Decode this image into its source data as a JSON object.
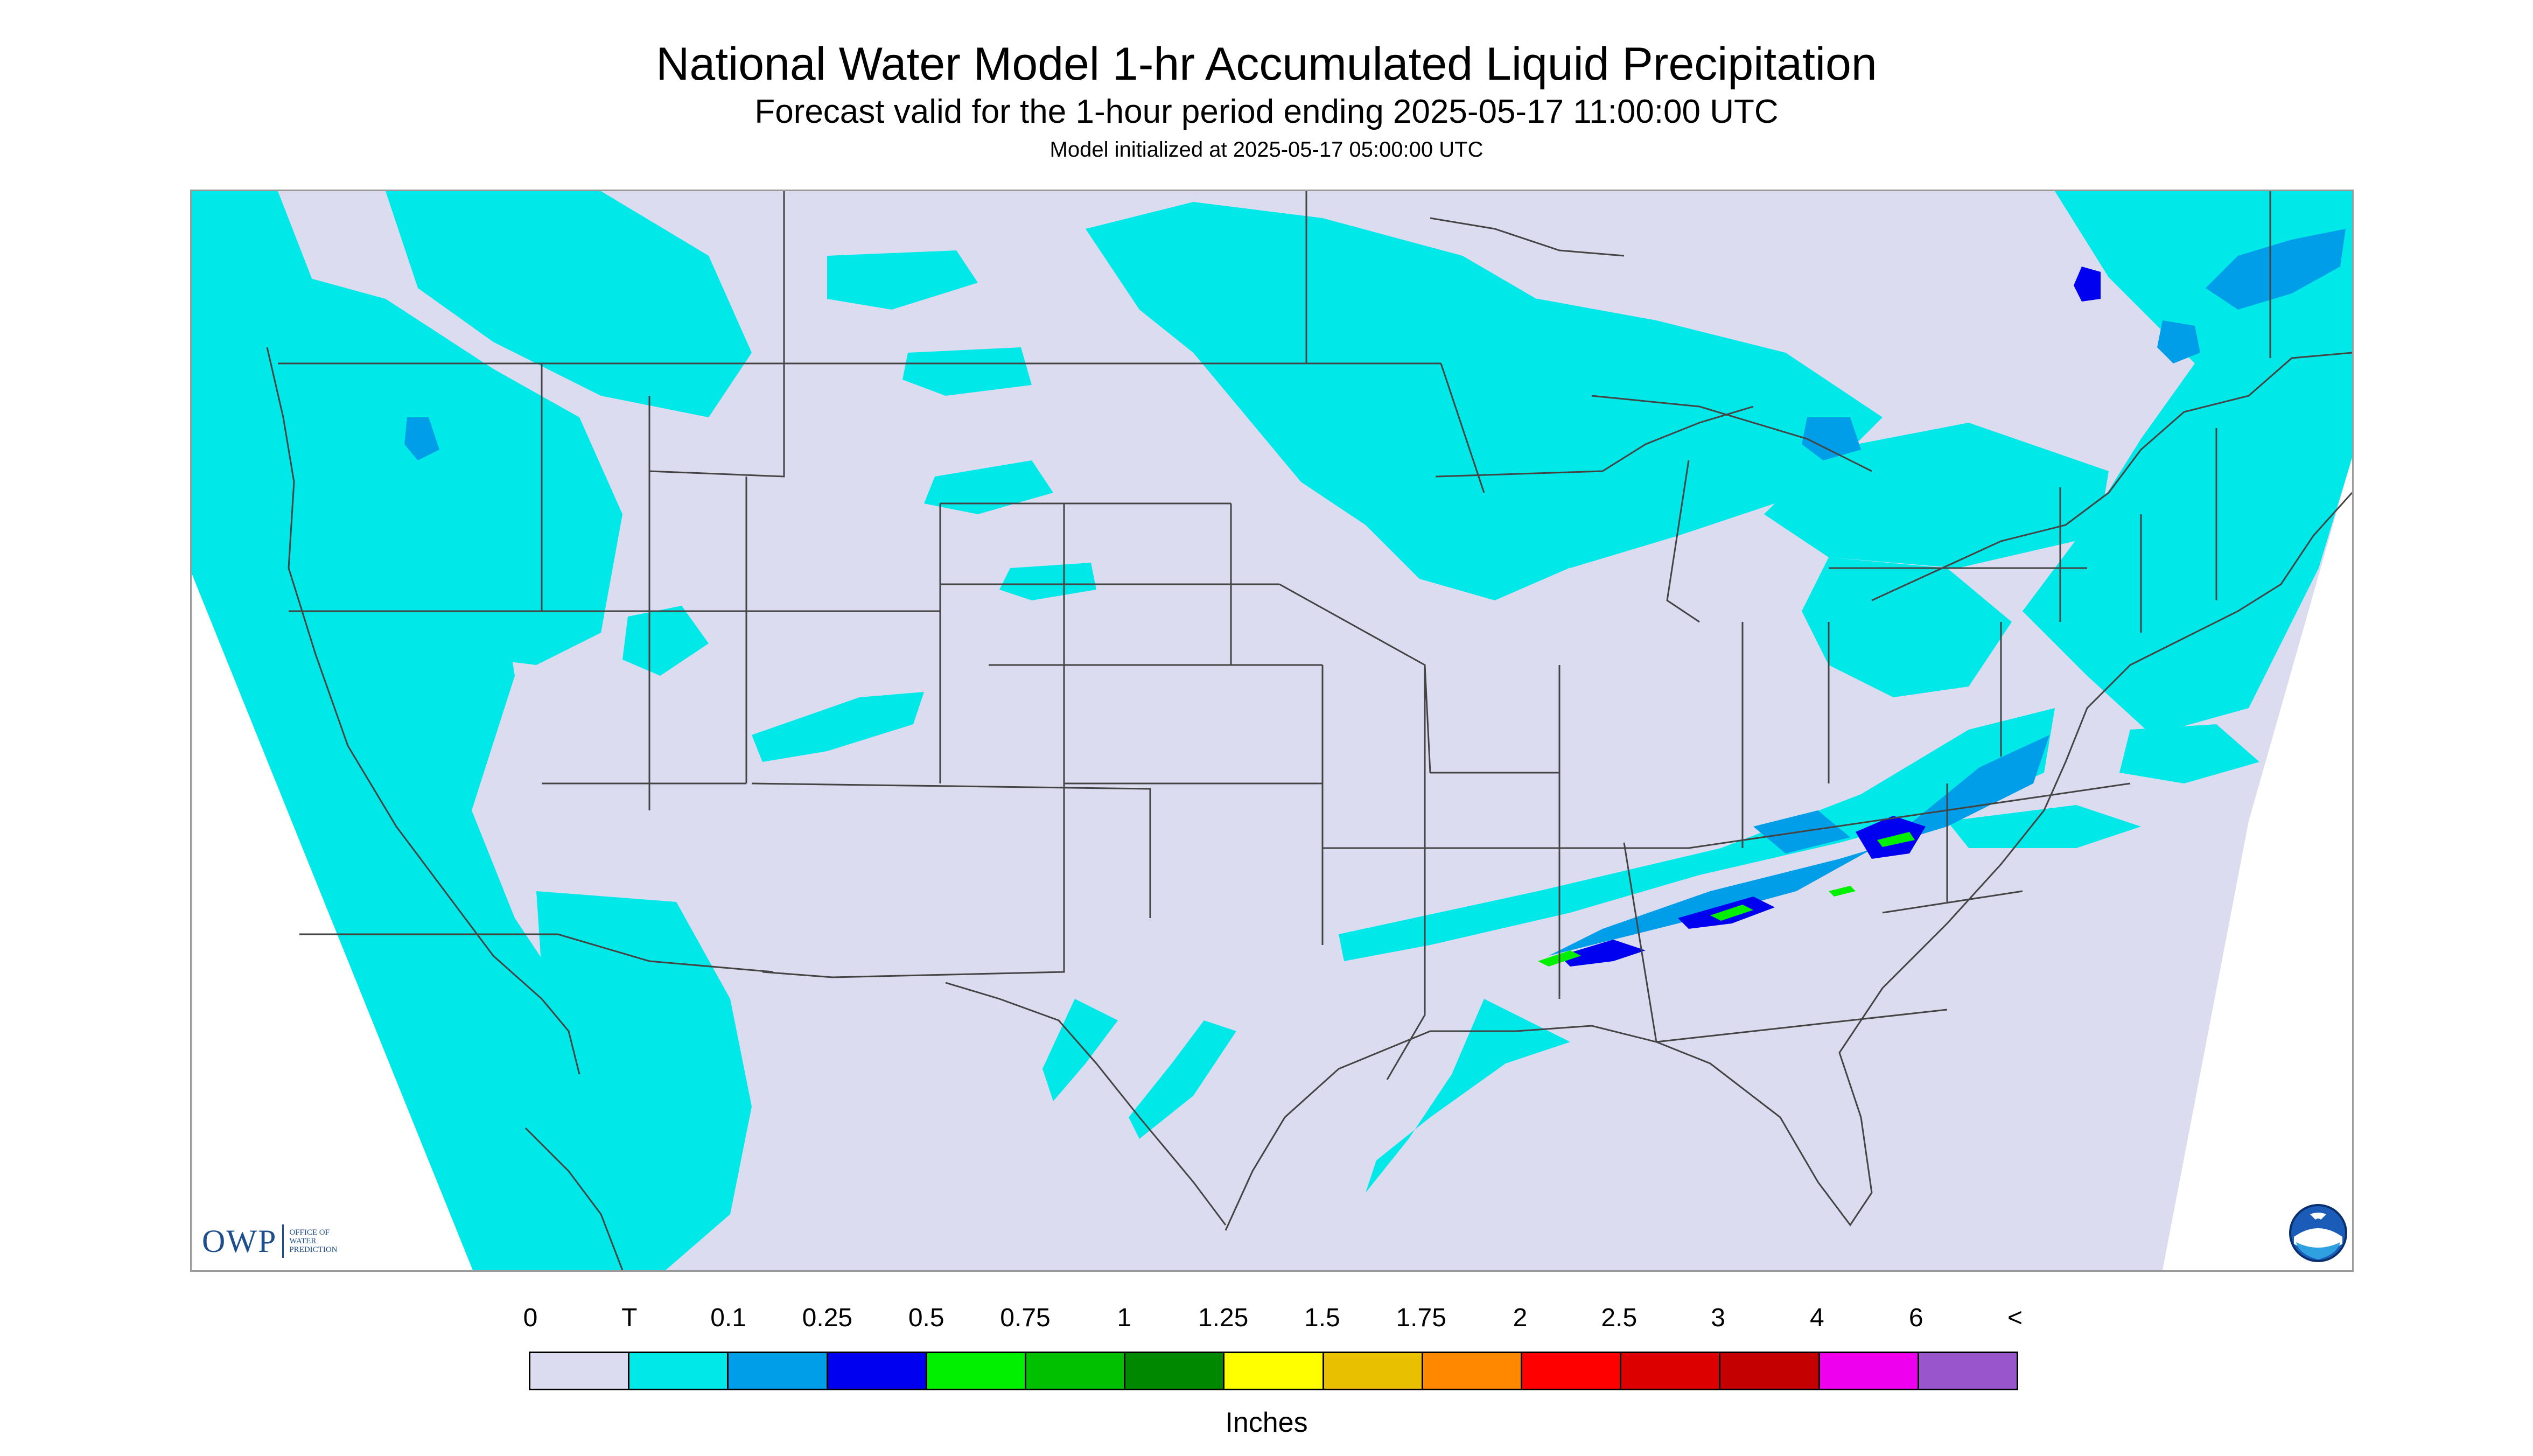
{
  "header": {
    "title": "National Water Model 1-hr Accumulated Liquid Precipitation",
    "subtitle": "Forecast valid for the 1-hour period ending 2025-05-17 11:00:00 UTC",
    "init_line": "Model initialized at 2025-05-17 05:00:00 UTC"
  },
  "logos": {
    "owp": "OWP",
    "owp_sub": [
      "OFFICE OF",
      "WATER",
      "PREDICTION"
    ],
    "noaa": "NOAA"
  },
  "colorbar": {
    "ticks": [
      "0",
      "T",
      "0.1",
      "0.25",
      "0.5",
      "0.75",
      "1",
      "1.25",
      "1.5",
      "1.75",
      "2",
      "2.5",
      "3",
      "4",
      "6",
      "<"
    ],
    "colors": [
      "#dcdcf0",
      "#00e8e8",
      "#009ee8",
      "#0000f0",
      "#00f000",
      "#00c000",
      "#008800",
      "#ffff00",
      "#e8c000",
      "#ff8800",
      "#ff0000",
      "#dd0000",
      "#c40000",
      "#ee00ee",
      "#9955cc"
    ],
    "units": "Inches"
  },
  "map_colors": {
    "background": "#dcdcf0",
    "trace": "#00e8e8",
    "light": "#009ee8",
    "medium": "#0000f0",
    "heavy": "#00f000",
    "border": "#444444"
  }
}
